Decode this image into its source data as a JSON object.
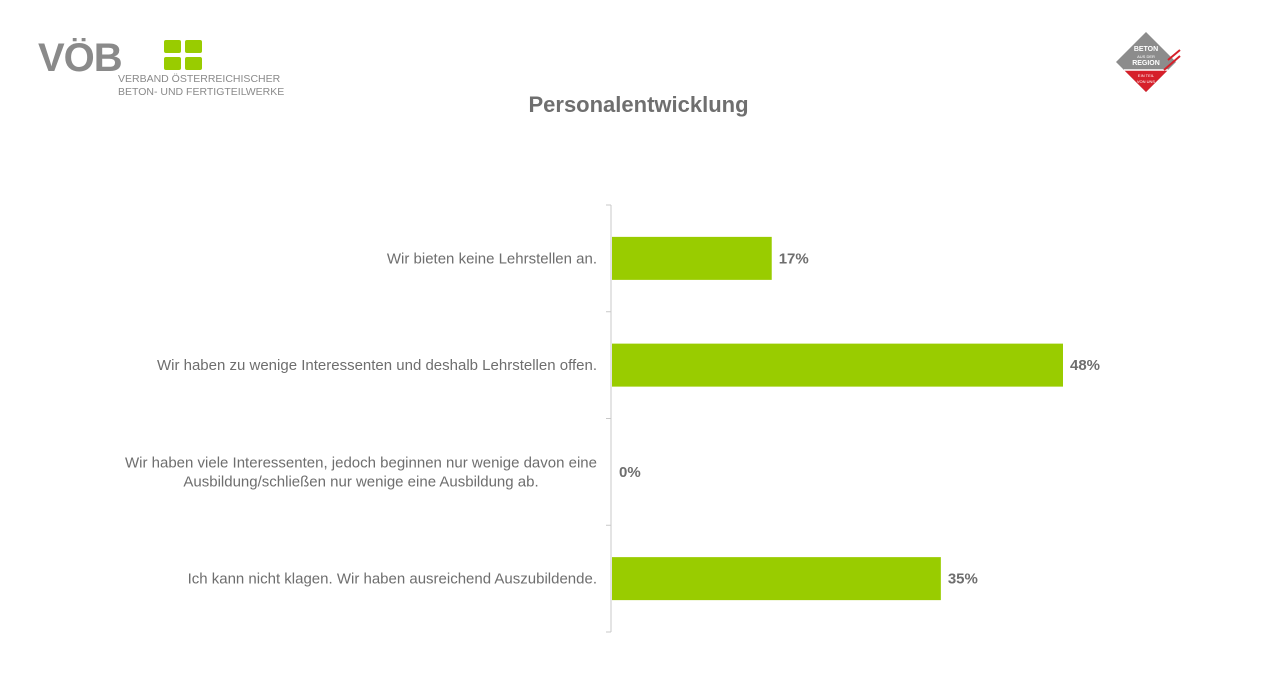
{
  "header": {
    "logo_brand": "VÖB",
    "logo_line1": "VERBAND ÖSTERREICHISCHER",
    "logo_line2": "BETON- UND FERTIGTEILWERKE",
    "badge_line1": "BETON",
    "badge_line2": "AUS DER",
    "badge_line3": "REGION",
    "badge_line4": "EIN TEIL",
    "badge_line5": "VON UNS"
  },
  "colors": {
    "bar": "#99cc00",
    "logo_gray": "#8a8a8a",
    "logo_green": "#99cc00",
    "badge_gray": "#8c8c8c",
    "badge_red": "#d6202a",
    "text": "#6e6e6e"
  },
  "chart_data": {
    "type": "bar",
    "orientation": "horizontal",
    "title": "Personalentwicklung",
    "categories": [
      [
        "Wir bieten keine Lehrstellen an."
      ],
      [
        "Wir haben zu wenige Interessenten und deshalb Lehrstellen offen."
      ],
      [
        "Wir haben viele Interessenten, jedoch beginnen nur wenige davon eine",
        "Ausbildung/schließen nur wenige eine Ausbildung ab."
      ],
      [
        "Ich kann nicht klagen. Wir haben ausreichend Auszubildende."
      ]
    ],
    "values": [
      17,
      48,
      0,
      35
    ],
    "value_labels": [
      "17%",
      "48%",
      "0%",
      "35%"
    ],
    "xlim": [
      0,
      100
    ],
    "grid": false,
    "legend": "none"
  }
}
